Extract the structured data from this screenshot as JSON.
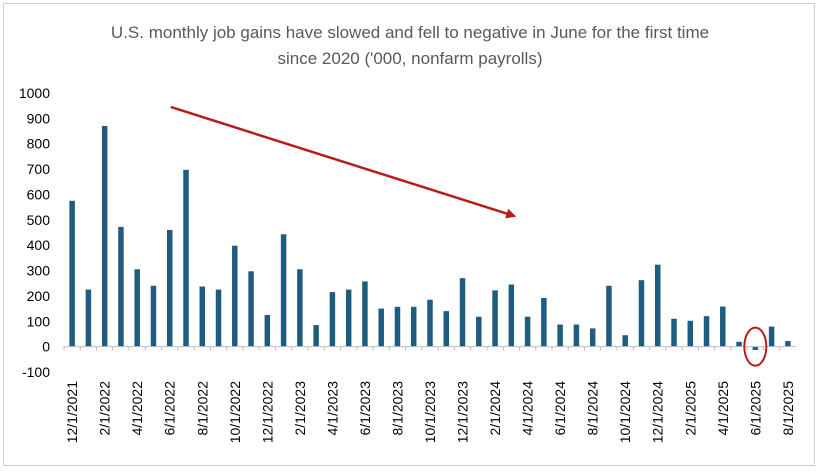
{
  "chart_data": {
    "type": "bar",
    "title_lines": [
      "U.S. monthly job gains have slowed and fell to negative in June for the first time",
      "since 2020 ('000, nonfarm payrolls)"
    ],
    "xlabel": "",
    "ylabel": "",
    "ylim": [
      -100,
      1000
    ],
    "yticks": [
      1000,
      900,
      800,
      700,
      600,
      500,
      400,
      300,
      200,
      100,
      0,
      -100
    ],
    "grid": false,
    "legend": "none",
    "bar_color": "#1f5c80",
    "arrow_color": "#b71c1c",
    "highlight_color": "#b71c1c",
    "categories": [
      "12/1/2021",
      "1/1/2022",
      "2/1/2022",
      "3/1/2022",
      "4/1/2022",
      "5/1/2022",
      "6/1/2022",
      "7/1/2022",
      "8/1/2022",
      "9/1/2022",
      "10/1/2022",
      "11/1/2022",
      "12/1/2022",
      "1/1/2023",
      "2/1/2023",
      "3/1/2023",
      "4/1/2023",
      "5/1/2023",
      "6/1/2023",
      "7/1/2023",
      "8/1/2023",
      "9/1/2023",
      "10/1/2023",
      "11/1/2023",
      "12/1/2023",
      "1/1/2024",
      "2/1/2024",
      "3/1/2024",
      "4/1/2024",
      "5/1/2024",
      "6/1/2024",
      "7/1/2024",
      "8/1/2024",
      "9/1/2024",
      "10/1/2024",
      "11/1/2024",
      "12/1/2024",
      "1/1/2025",
      "2/1/2025",
      "3/1/2025",
      "4/1/2025",
      "5/1/2025",
      "6/1/2025",
      "7/1/2025",
      "8/1/2025"
    ],
    "tick_labels": [
      "12/1/2021",
      "2/1/2022",
      "4/1/2022",
      "6/1/2022",
      "8/1/2022",
      "10/1/2022",
      "12/1/2022",
      "2/1/2023",
      "4/1/2023",
      "6/1/2023",
      "8/1/2023",
      "10/1/2023",
      "12/1/2023",
      "2/1/2024",
      "4/1/2024",
      "6/1/2024",
      "8/1/2024",
      "10/1/2024",
      "12/1/2024",
      "2/1/2025",
      "4/1/2025",
      "6/1/2025",
      "8/1/2025"
    ],
    "values": [
      575,
      225,
      870,
      472,
      305,
      240,
      460,
      697,
      237,
      225,
      398,
      297,
      125,
      443,
      305,
      85,
      215,
      225,
      257,
      150,
      157,
      157,
      185,
      140,
      270,
      118,
      222,
      245,
      118,
      192,
      87,
      87,
      72,
      240,
      45,
      262,
      323,
      110,
      102,
      120,
      158,
      19,
      -13,
      79,
      22
    ],
    "highlight_category": "6/1/2025"
  }
}
